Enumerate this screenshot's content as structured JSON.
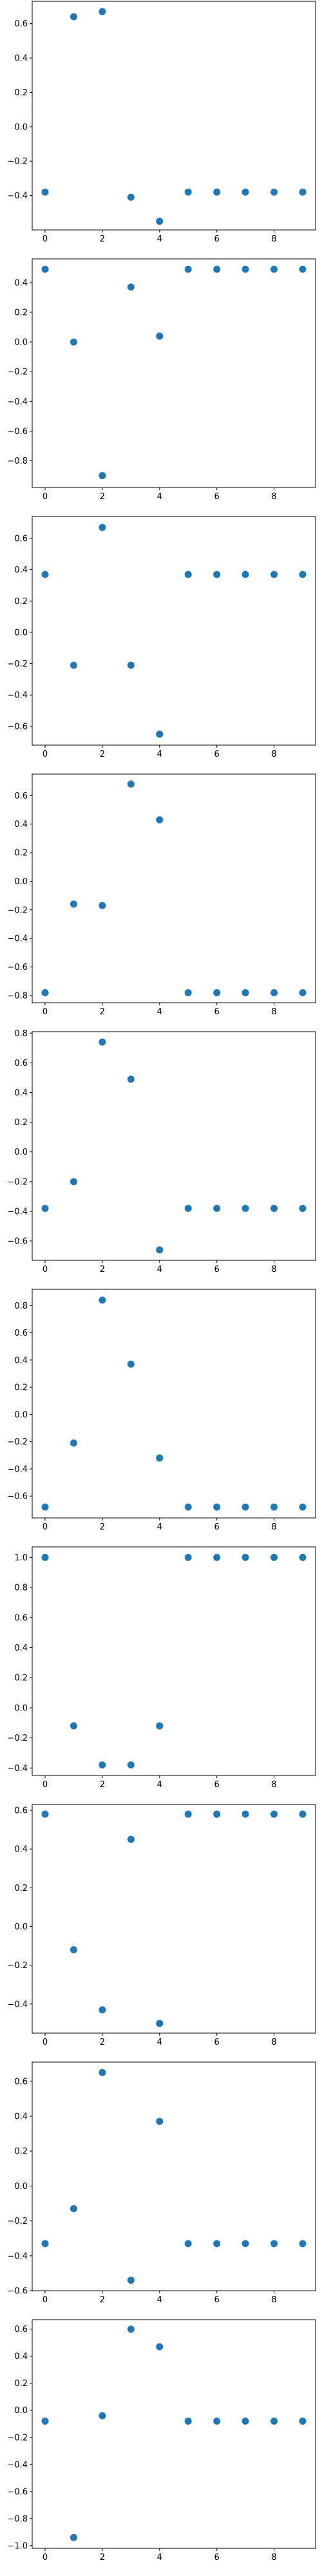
{
  "figure": {
    "marker_color": "#1f77b4"
  },
  "chart_data": [
    {
      "type": "scatter",
      "x": [
        0,
        1,
        2,
        3,
        4,
        5,
        6,
        7,
        8,
        9
      ],
      "y": [
        -0.38,
        0.64,
        0.67,
        -0.41,
        -0.55,
        -0.38,
        -0.38,
        -0.38,
        -0.38,
        -0.38
      ],
      "xlim": [
        -0.45,
        9.45
      ],
      "ylim": [
        -0.6,
        0.73
      ],
      "xticks": [
        0,
        2,
        4,
        6,
        8
      ],
      "xtick_labels": [
        "0",
        "2",
        "4",
        "6",
        "8"
      ],
      "yticks": [
        -0.4,
        -0.2,
        0.0,
        0.2,
        0.4,
        0.6
      ],
      "ytick_labels": [
        "−0.4",
        "−0.2",
        "0.0",
        "0.2",
        "0.4",
        "0.6"
      ],
      "grid": false,
      "xlabel": "",
      "ylabel": "",
      "title": ""
    },
    {
      "type": "scatter",
      "x": [
        0,
        1,
        2,
        3,
        4,
        5,
        6,
        7,
        8,
        9
      ],
      "y": [
        0.49,
        0.0,
        -0.9,
        0.37,
        0.04,
        0.49,
        0.49,
        0.49,
        0.49,
        0.49
      ],
      "xlim": [
        -0.45,
        9.45
      ],
      "ylim": [
        -0.98,
        0.56
      ],
      "xticks": [
        0,
        2,
        4,
        6,
        8
      ],
      "xtick_labels": [
        "0",
        "2",
        "4",
        "6",
        "8"
      ],
      "yticks": [
        -0.8,
        -0.6,
        -0.4,
        -0.2,
        0.0,
        0.2,
        0.4
      ],
      "ytick_labels": [
        "−0.8",
        "−0.6",
        "−0.4",
        "−0.2",
        "0.0",
        "0.2",
        "0.4"
      ],
      "grid": false,
      "xlabel": "",
      "ylabel": "",
      "title": ""
    },
    {
      "type": "scatter",
      "x": [
        0,
        1,
        2,
        3,
        4,
        5,
        6,
        7,
        8,
        9
      ],
      "y": [
        0.37,
        -0.21,
        0.67,
        -0.21,
        -0.65,
        0.37,
        0.37,
        0.37,
        0.37,
        0.37
      ],
      "xlim": [
        -0.45,
        9.45
      ],
      "ylim": [
        -0.72,
        0.74
      ],
      "xticks": [
        0,
        2,
        4,
        6,
        8
      ],
      "xtick_labels": [
        "0",
        "2",
        "4",
        "6",
        "8"
      ],
      "yticks": [
        -0.6,
        -0.4,
        -0.2,
        0.0,
        0.2,
        0.4,
        0.6
      ],
      "ytick_labels": [
        "−0.6",
        "−0.4",
        "−0.2",
        "0.0",
        "0.2",
        "0.4",
        "0.6"
      ],
      "grid": false,
      "xlabel": "",
      "ylabel": "",
      "title": ""
    },
    {
      "type": "scatter",
      "x": [
        0,
        1,
        2,
        3,
        4,
        5,
        6,
        7,
        8,
        9
      ],
      "y": [
        -0.78,
        -0.16,
        -0.17,
        0.68,
        0.43,
        -0.78,
        -0.78,
        -0.78,
        -0.78,
        -0.78
      ],
      "xlim": [
        -0.45,
        9.45
      ],
      "ylim": [
        -0.85,
        0.75
      ],
      "xticks": [
        0,
        2,
        4,
        6,
        8
      ],
      "xtick_labels": [
        "0",
        "2",
        "4",
        "6",
        "8"
      ],
      "yticks": [
        -0.8,
        -0.6,
        -0.4,
        -0.2,
        0.0,
        0.2,
        0.4,
        0.6
      ],
      "ytick_labels": [
        "−0.8",
        "−0.6",
        "−0.4",
        "−0.2",
        "0.0",
        "0.2",
        "0.4",
        "0.6"
      ],
      "grid": false,
      "xlabel": "",
      "ylabel": "",
      "title": ""
    },
    {
      "type": "scatter",
      "x": [
        0,
        1,
        2,
        3,
        4,
        5,
        6,
        7,
        8,
        9
      ],
      "y": [
        -0.38,
        -0.2,
        0.74,
        0.49,
        -0.66,
        -0.38,
        -0.38,
        -0.38,
        -0.38,
        -0.38
      ],
      "xlim": [
        -0.45,
        9.45
      ],
      "ylim": [
        -0.73,
        0.81
      ],
      "xticks": [
        0,
        2,
        4,
        6,
        8
      ],
      "xtick_labels": [
        "0",
        "2",
        "4",
        "6",
        "8"
      ],
      "yticks": [
        -0.6,
        -0.4,
        -0.2,
        0.0,
        0.2,
        0.4,
        0.6,
        0.8
      ],
      "ytick_labels": [
        "−0.6",
        "−0.4",
        "−0.2",
        "0.0",
        "0.2",
        "0.4",
        "0.6",
        "0.8"
      ],
      "grid": false,
      "xlabel": "",
      "ylabel": "",
      "title": ""
    },
    {
      "type": "scatter",
      "x": [
        0,
        1,
        2,
        3,
        4,
        5,
        6,
        7,
        8,
        9
      ],
      "y": [
        -0.68,
        -0.21,
        0.84,
        0.37,
        -0.32,
        -0.68,
        -0.68,
        -0.68,
        -0.68,
        -0.68
      ],
      "xlim": [
        -0.45,
        9.45
      ],
      "ylim": [
        -0.76,
        0.92
      ],
      "xticks": [
        0,
        2,
        4,
        6,
        8
      ],
      "xtick_labels": [
        "0",
        "2",
        "4",
        "6",
        "8"
      ],
      "yticks": [
        -0.6,
        -0.4,
        -0.2,
        0.0,
        0.2,
        0.4,
        0.6,
        0.8
      ],
      "ytick_labels": [
        "−0.6",
        "−0.4",
        "−0.2",
        "0.0",
        "0.2",
        "0.4",
        "0.6",
        "0.8"
      ],
      "grid": false,
      "xlabel": "",
      "ylabel": "",
      "title": ""
    },
    {
      "type": "scatter",
      "x": [
        0,
        1,
        2,
        3,
        4,
        5,
        6,
        7,
        8,
        9
      ],
      "y": [
        1.0,
        -0.12,
        -0.38,
        -0.38,
        -0.12,
        1.0,
        1.0,
        1.0,
        1.0,
        1.0
      ],
      "xlim": [
        -0.45,
        9.45
      ],
      "ylim": [
        -0.45,
        1.07
      ],
      "xticks": [
        0,
        2,
        4,
        6,
        8
      ],
      "xtick_labels": [
        "0",
        "2",
        "4",
        "6",
        "8"
      ],
      "yticks": [
        -0.4,
        -0.2,
        0.0,
        0.2,
        0.4,
        0.6,
        0.8,
        1.0
      ],
      "ytick_labels": [
        "−0.4",
        "−0.2",
        "0.0",
        "0.2",
        "0.4",
        "0.6",
        "0.8",
        "1.0"
      ],
      "grid": false,
      "xlabel": "",
      "ylabel": "",
      "title": ""
    },
    {
      "type": "scatter",
      "x": [
        0,
        1,
        2,
        3,
        4,
        5,
        6,
        7,
        8,
        9
      ],
      "y": [
        0.58,
        -0.12,
        -0.43,
        0.45,
        -0.5,
        0.58,
        0.58,
        0.58,
        0.58,
        0.58
      ],
      "xlim": [
        -0.45,
        9.45
      ],
      "ylim": [
        -0.55,
        0.63
      ],
      "xticks": [
        0,
        2,
        4,
        6,
        8
      ],
      "xtick_labels": [
        "0",
        "2",
        "4",
        "6",
        "8"
      ],
      "yticks": [
        -0.4,
        -0.2,
        0.0,
        0.2,
        0.4,
        0.6
      ],
      "ytick_labels": [
        "−0.4",
        "−0.2",
        "0.0",
        "0.2",
        "0.4",
        "0.6"
      ],
      "grid": false,
      "xlabel": "",
      "ylabel": "",
      "title": ""
    },
    {
      "type": "scatter",
      "x": [
        0,
        1,
        2,
        3,
        4,
        5,
        6,
        7,
        8,
        9
      ],
      "y": [
        -0.33,
        -0.13,
        0.65,
        -0.54,
        0.37,
        -0.33,
        -0.33,
        -0.33,
        -0.33,
        -0.33
      ],
      "xlim": [
        -0.45,
        9.45
      ],
      "ylim": [
        -0.6,
        0.71
      ],
      "xticks": [
        0,
        2,
        4,
        6,
        8
      ],
      "xtick_labels": [
        "0",
        "2",
        "4",
        "6",
        "8"
      ],
      "yticks": [
        -0.6,
        -0.4,
        -0.2,
        0.0,
        0.2,
        0.4,
        0.6
      ],
      "ytick_labels": [
        "−0.6",
        "−0.4",
        "−0.2",
        "0.0",
        "0.2",
        "0.4",
        "0.6"
      ],
      "grid": false,
      "xlabel": "",
      "ylabel": "",
      "title": ""
    },
    {
      "type": "scatter",
      "x": [
        0,
        1,
        2,
        3,
        4,
        5,
        6,
        7,
        8,
        9
      ],
      "y": [
        -0.08,
        -0.94,
        -0.04,
        0.6,
        0.47,
        -0.08,
        -0.08,
        -0.08,
        -0.08,
        -0.08
      ],
      "xlim": [
        -0.45,
        9.45
      ],
      "ylim": [
        -1.02,
        0.67
      ],
      "xticks": [
        0,
        2,
        4,
        6,
        8
      ],
      "xtick_labels": [
        "0",
        "2",
        "4",
        "6",
        "8"
      ],
      "yticks": [
        -1.0,
        -0.8,
        -0.6,
        -0.4,
        -0.2,
        0.0,
        0.2,
        0.4,
        0.6
      ],
      "ytick_labels": [
        "−1.0",
        "−0.8",
        "−0.6",
        "−0.4",
        "−0.2",
        "0.0",
        "0.2",
        "0.4",
        "0.6"
      ],
      "grid": false,
      "xlabel": "",
      "ylabel": "",
      "title": ""
    }
  ]
}
